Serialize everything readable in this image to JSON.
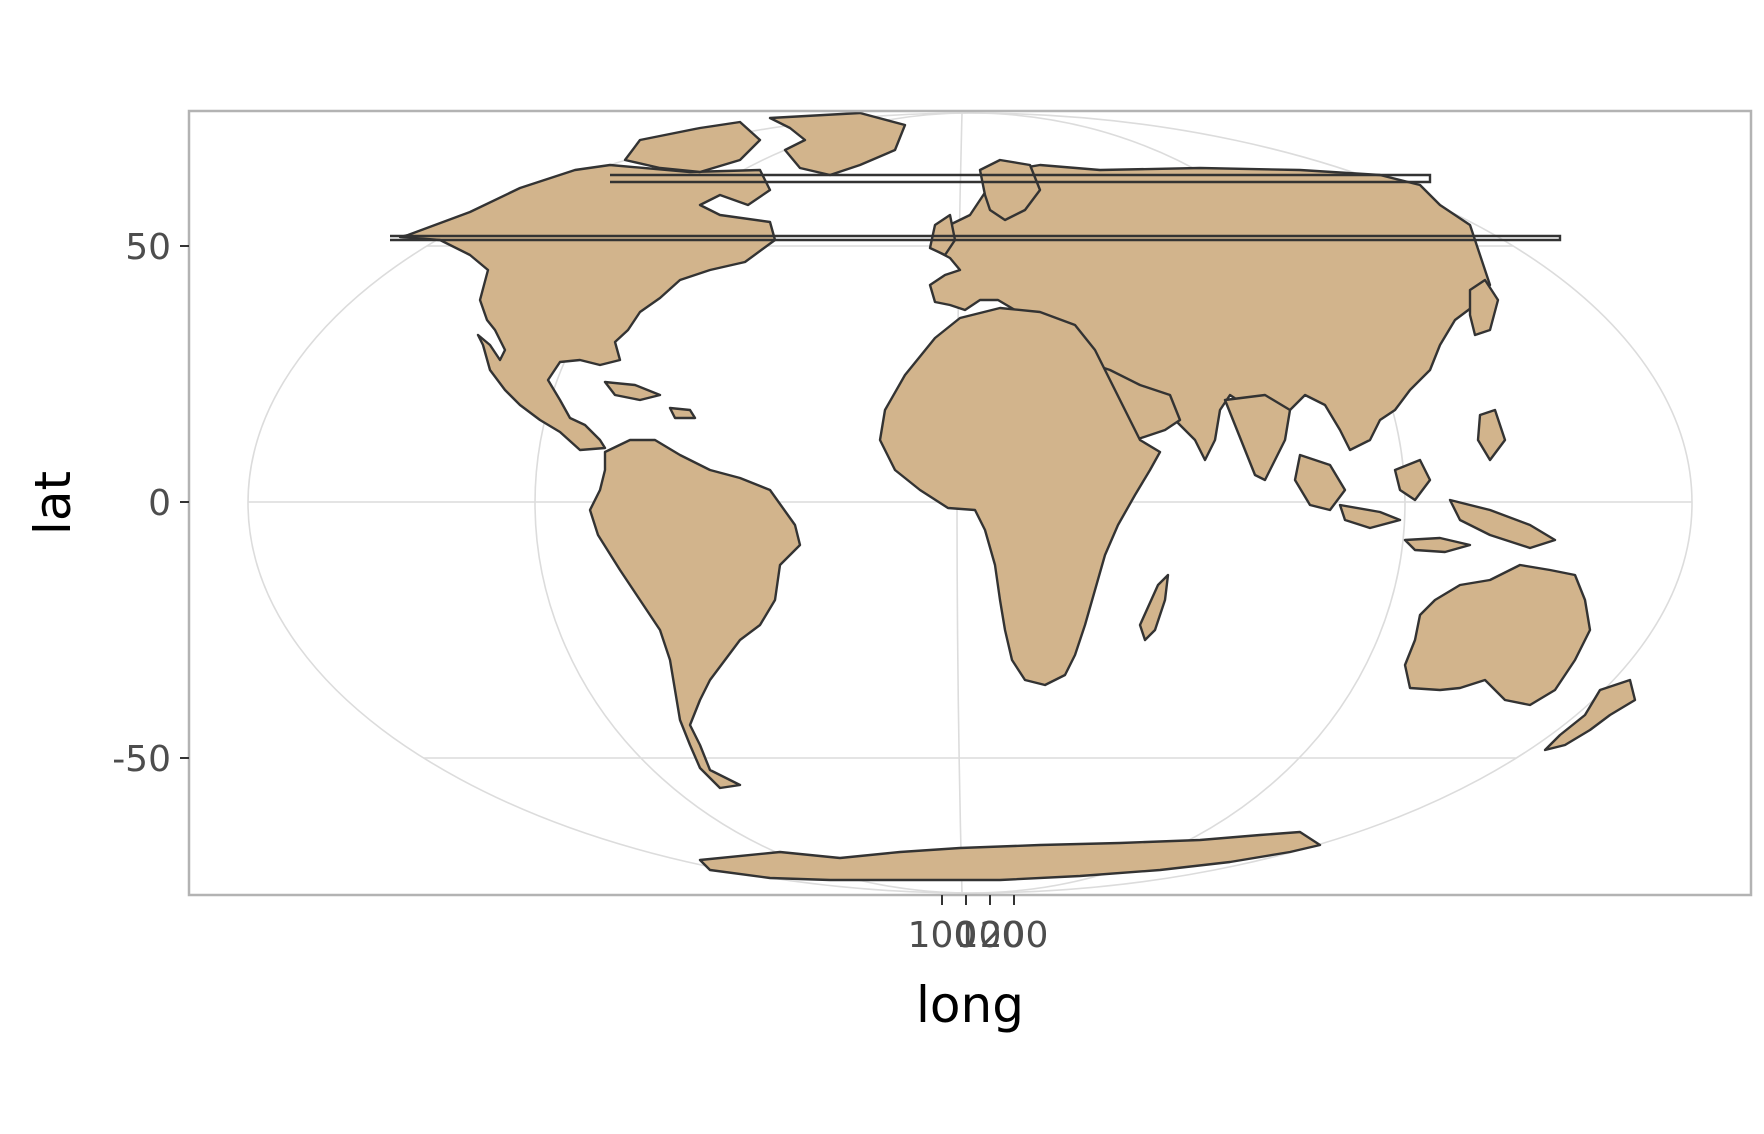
{
  "chart_data": {
    "type": "map",
    "projection": "aitoff-like (world map, oval graticule)",
    "xlabel": "long",
    "ylabel": "lat",
    "y_ticks": [
      {
        "value": 50,
        "label": "50"
      },
      {
        "value": 0,
        "label": "0"
      },
      {
        "value": -50,
        "label": "-50"
      }
    ],
    "x_ticks": [
      {
        "value": -100,
        "label": "100"
      },
      {
        "value": 0,
        "label": "0"
      },
      {
        "value": 100,
        "label": "100"
      },
      {
        "value": 200,
        "label": "200"
      }
    ],
    "ylim": [
      -77,
      76
    ],
    "grid": true,
    "legend": "none",
    "land_fill": "#d2b48c",
    "border_color": "#333333",
    "grid_color": "#dcdcdc",
    "panel_border_color": "#b3b3b3"
  }
}
